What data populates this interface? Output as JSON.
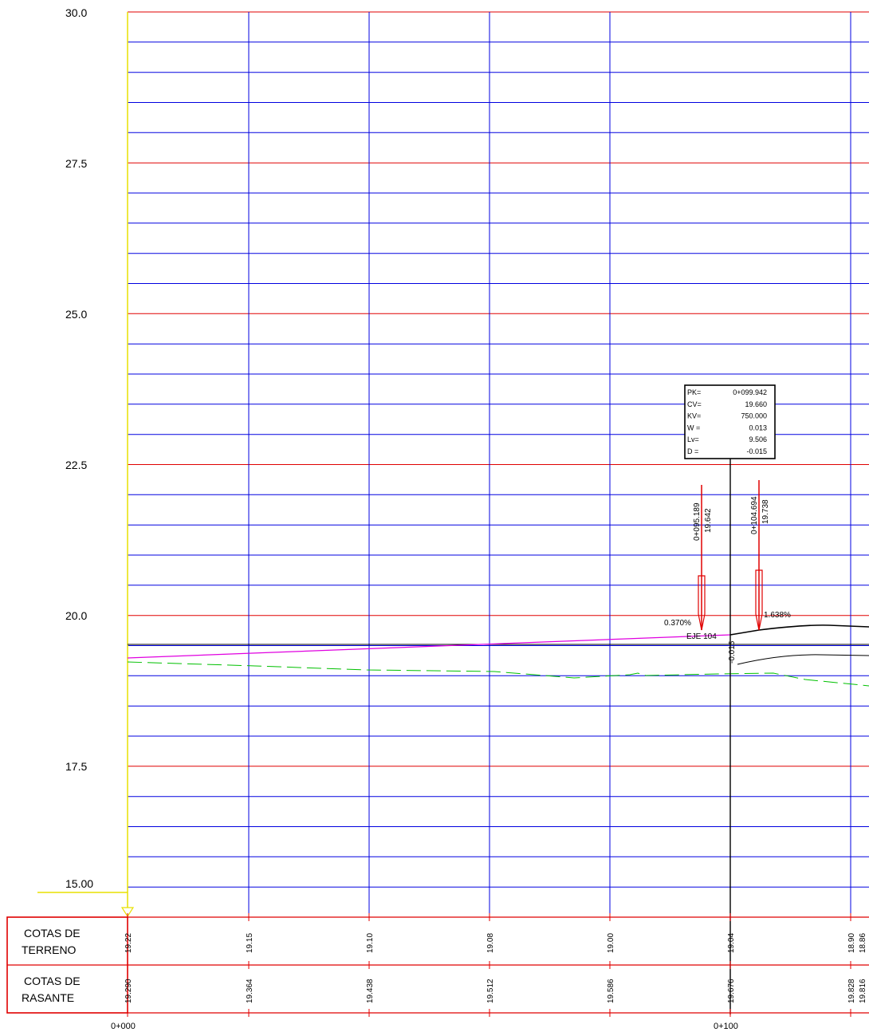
{
  "y_axis": {
    "labels": [
      "30.0",
      "27.5",
      "25.0",
      "22.5",
      "20.0",
      "17.5"
    ],
    "datum": "15.00",
    "min": 15.0,
    "max": 30.0
  },
  "table": {
    "row1": {
      "line1": "COTAS DE",
      "line2": "TERRENO"
    },
    "row2": {
      "line1": "COTAS DE",
      "line2": "RASANTE"
    },
    "terreno": [
      "19.22",
      "19.15",
      "19.10",
      "19.08",
      "19.00",
      "19.04",
      "18.90",
      "18.86"
    ],
    "rasante": [
      "19.290",
      "19.364",
      "19.438",
      "19.512",
      "19.586",
      "19.676",
      "19.828",
      "19.816"
    ],
    "stations": [
      "0+000",
      "0+100"
    ]
  },
  "vertical_curve": {
    "rows": [
      {
        "key": "PK=",
        "value": "0+099.942"
      },
      {
        "key": "CV=",
        "value": "19.660"
      },
      {
        "key": "KV=",
        "value": "750.000"
      },
      {
        "key": "W =",
        "value": "0.013"
      },
      {
        "key": "Lv=",
        "value": "9.506"
      },
      {
        "key": "D =",
        "value": "-0.015"
      }
    ]
  },
  "markers": {
    "left": {
      "station": "0+095.189",
      "elev": "19.642"
    },
    "right": {
      "station": "0+104.694",
      "elev": "19.738"
    }
  },
  "annotations": {
    "slope_in": "0.370%",
    "slope_out": "1.638%",
    "axis_label": "EJE 104",
    "offset": "-0.015"
  },
  "colors": {
    "major_grid": "#e00000",
    "minor_grid": "#0000e0",
    "axis": "#e8e000",
    "rasante": "#e000e0",
    "terreno": "#00c000",
    "marker": "#e00000"
  },
  "chart_data": {
    "type": "line",
    "x_units": "station (m)",
    "y_units": "elevation (m)",
    "ylim": [
      15.0,
      30.0
    ],
    "series": [
      {
        "name": "",
        "x": [
          0,
          100
        ],
        "y": [
          19.29,
          19.66
        ]
      },
      {
        "name": "",
        "x": [
          0,
          20,
          40,
          60,
          80,
          100,
          115
        ],
        "y": [
          19.22,
          19.15,
          19.1,
          19.08,
          19.0,
          19.04,
          18.9
        ]
      }
    ]
  }
}
